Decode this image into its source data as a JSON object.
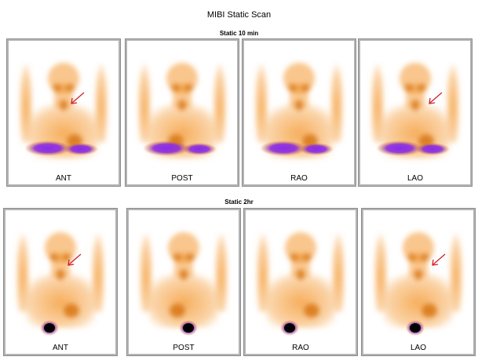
{
  "title": "MIBI Static Scan",
  "rows": [
    {
      "label": "Static 10 min",
      "views": [
        {
          "label": "ANT",
          "arrow": true
        },
        {
          "label": "POST",
          "arrow": false
        },
        {
          "label": "RAO",
          "arrow": false
        },
        {
          "label": "LAO",
          "arrow": true
        }
      ]
    },
    {
      "label": "Static 2hr",
      "views": [
        {
          "label": "ANT",
          "arrow": true
        },
        {
          "label": "POST",
          "arrow": false
        },
        {
          "label": "RAO",
          "arrow": false
        },
        {
          "label": "LAO",
          "arrow": true
        }
      ]
    }
  ],
  "colors": {
    "uptake": "#f5a040",
    "uptake_dark": "#d97a1a",
    "high_uptake": "#8a2be2",
    "hot_core": "#000000",
    "arrow": "#d0202a",
    "frame": "#b4b4b4"
  }
}
